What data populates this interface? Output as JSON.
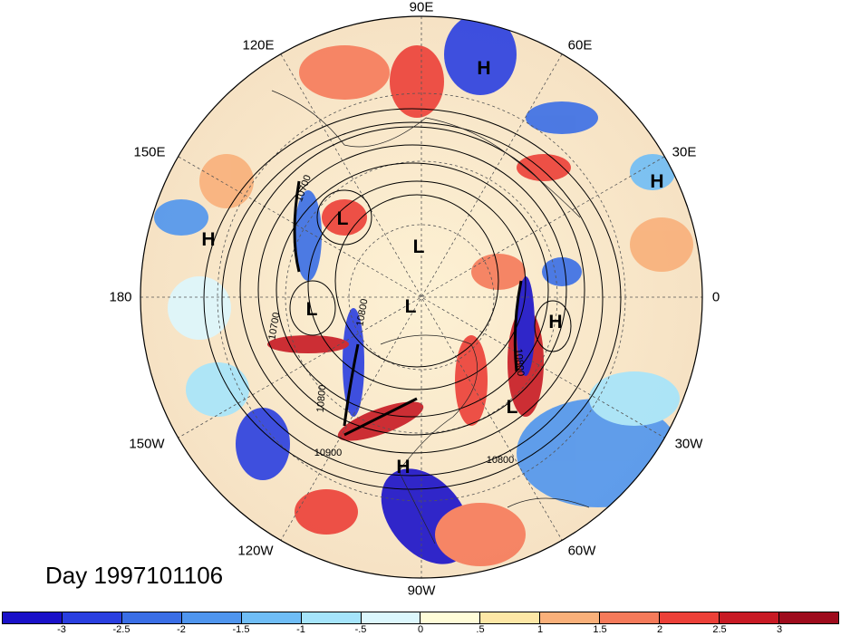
{
  "title": "Day 1997101106",
  "longitude_labels": [
    "90E",
    "60E",
    "30E",
    "0",
    "30W",
    "60W",
    "90W",
    "120W",
    "150W",
    "180",
    "150E",
    "120E"
  ],
  "pressure_centers": [
    {
      "label": "H"
    },
    {
      "label": "H"
    },
    {
      "label": "H"
    },
    {
      "label": "L"
    },
    {
      "label": "L"
    },
    {
      "label": "L"
    },
    {
      "label": "L"
    },
    {
      "label": "H"
    },
    {
      "label": "L"
    },
    {
      "label": "H"
    }
  ],
  "contour_labels": [
    "10700",
    "10800",
    "10800",
    "10800",
    "10900",
    "10800",
    "10700"
  ],
  "colorbar": {
    "tick_labels": [
      "-3",
      "-2.5",
      "-2",
      "-1.5",
      "-1",
      "-.5",
      "0",
      ".5",
      "1",
      "1.5",
      "2",
      "2.5",
      "3"
    ],
    "colors": [
      "#1a11c9",
      "#2a3fe0",
      "#3a6ee6",
      "#4f95ee",
      "#6fbdf6",
      "#a5e4fb",
      "#dcf7fd",
      "#fffcd8",
      "#fde7a6",
      "#f9b07a",
      "#f57a5a",
      "#ec4038",
      "#c81a24",
      "#9e0b1c"
    ]
  }
}
